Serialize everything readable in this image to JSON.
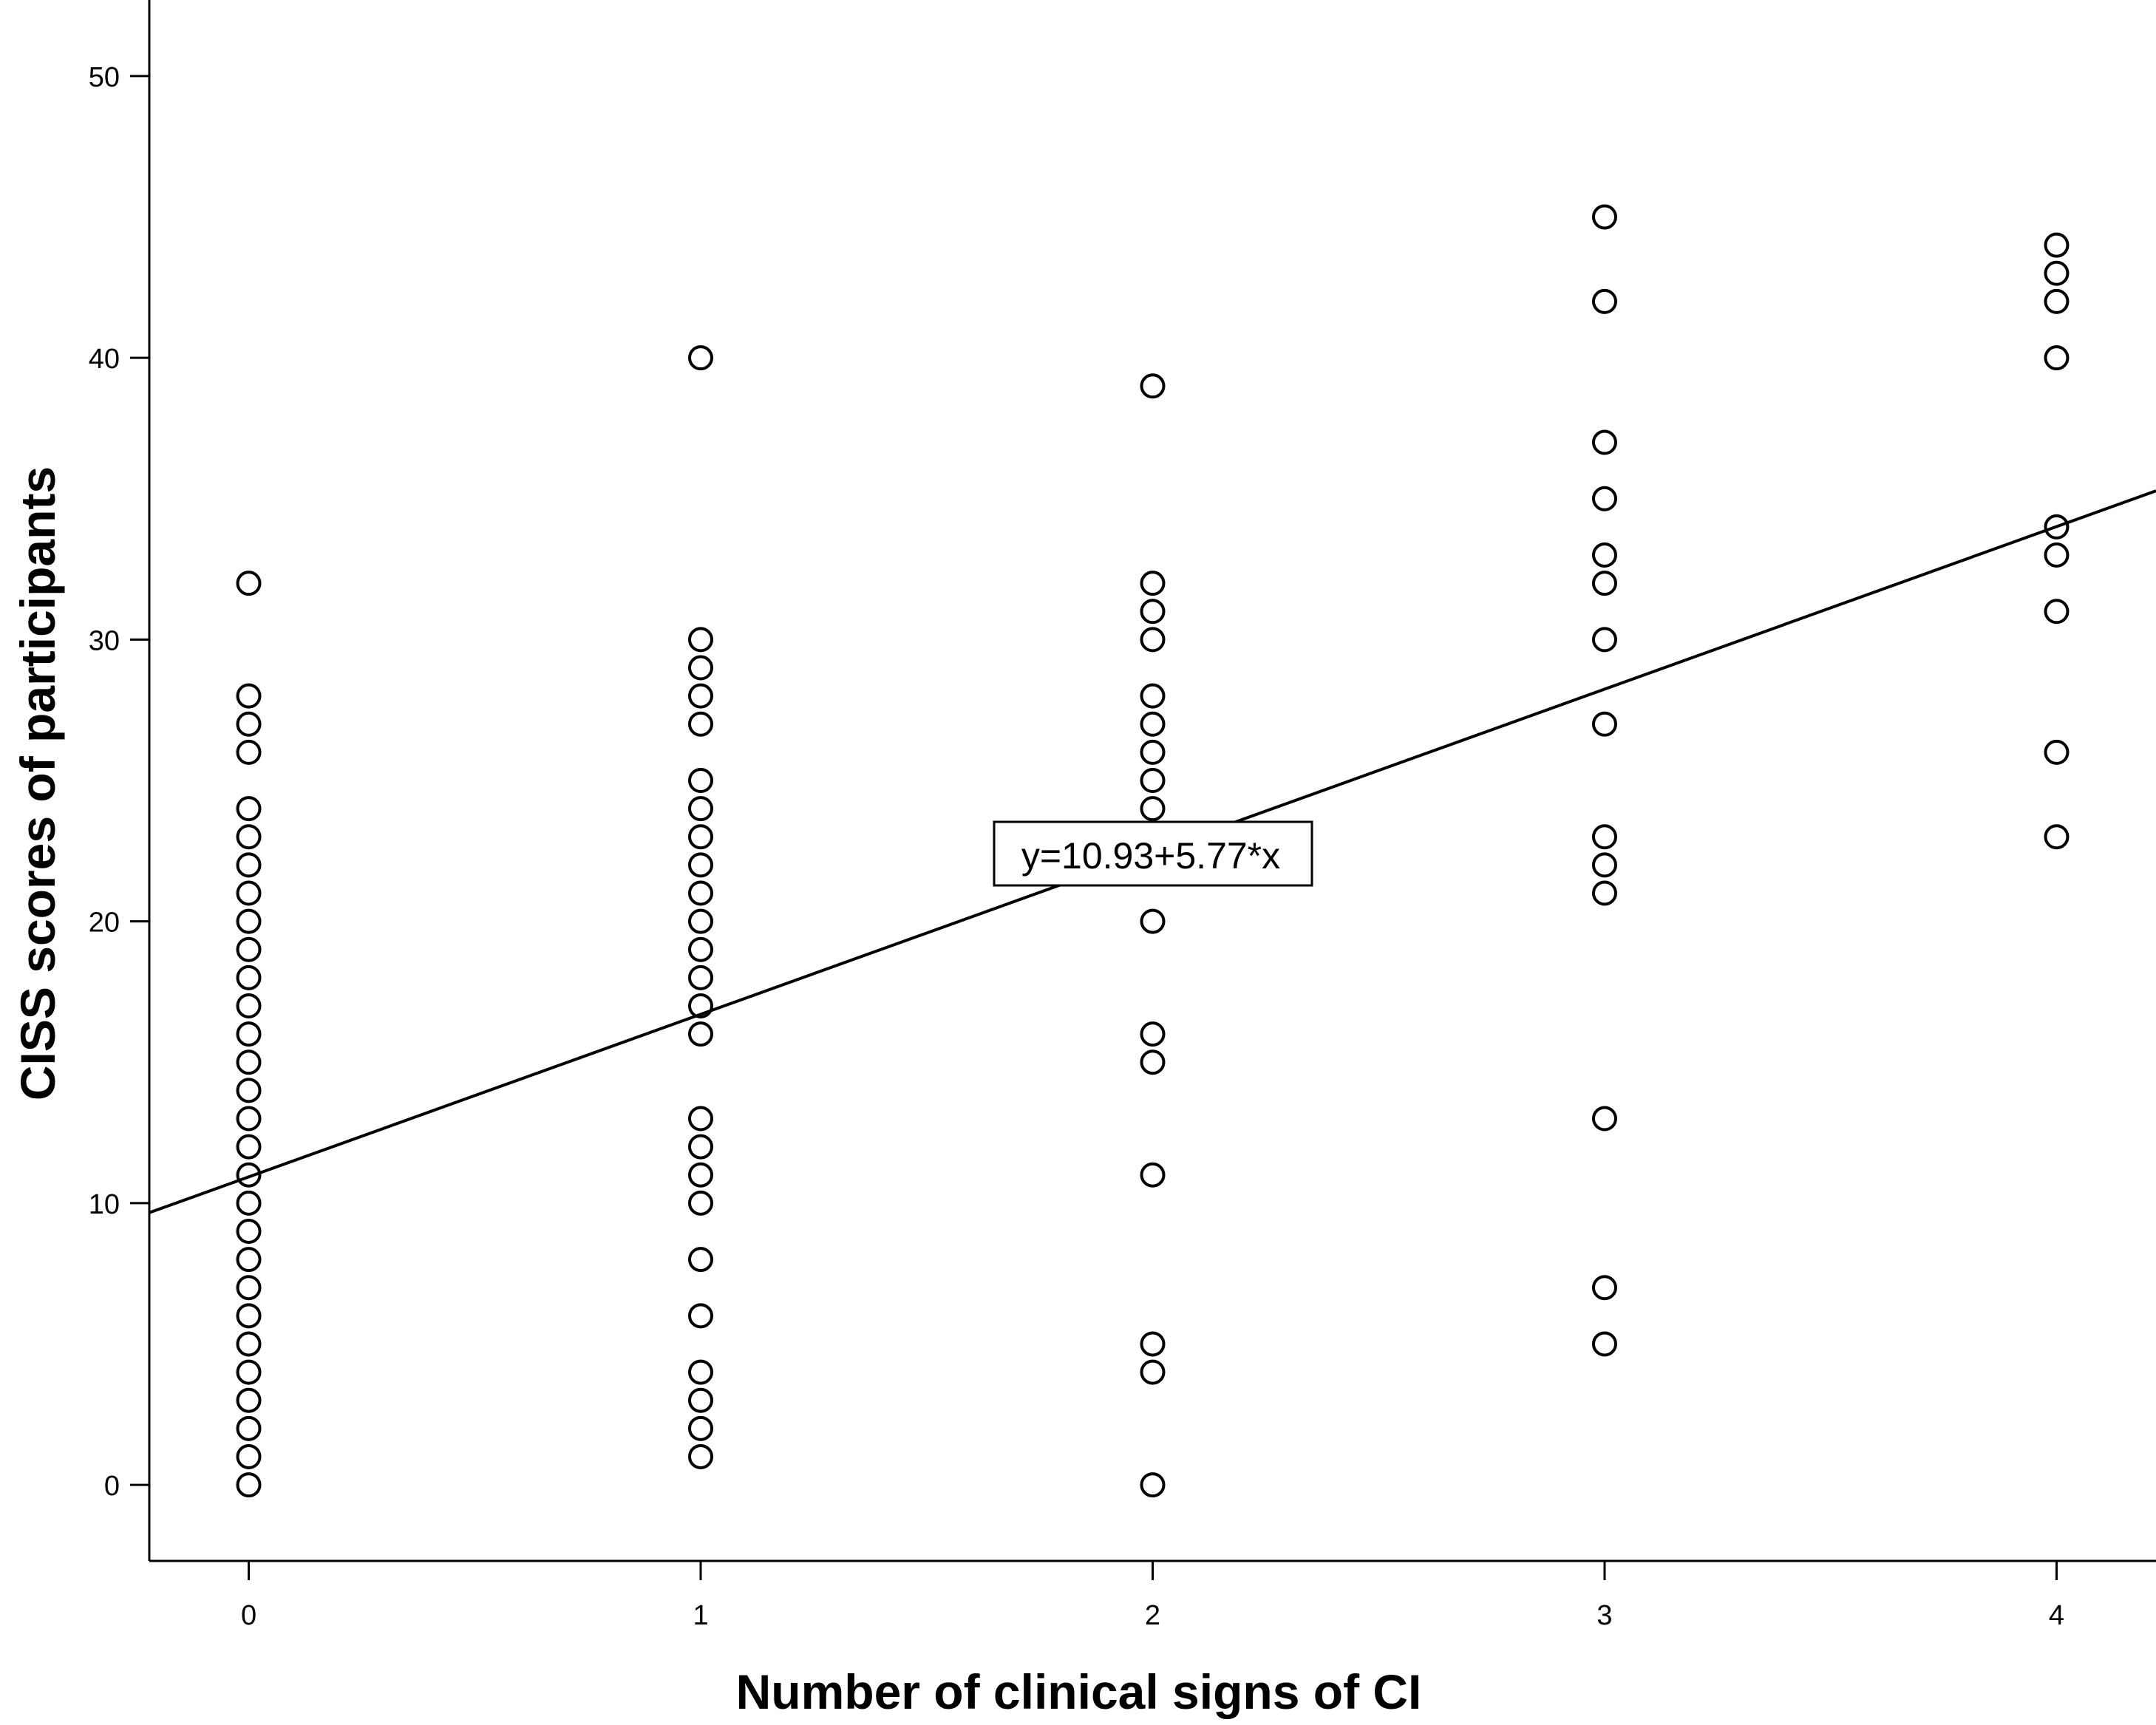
{
  "chart_data": {
    "type": "scatter",
    "title": "",
    "xlabel": "Number of clinical signs of CI",
    "ylabel": "CISS scores of participants",
    "xlim": [
      -0.22,
      4.22
    ],
    "ylim": [
      -2.7,
      52.7
    ],
    "x_ticks": [
      0,
      1,
      2,
      3,
      4
    ],
    "y_ticks": [
      0,
      10,
      20,
      30,
      40,
      50
    ],
    "grid": false,
    "legend": "none",
    "points": {
      "0": [
        0,
        1,
        2,
        3,
        4,
        5,
        6,
        7,
        8,
        9,
        10,
        11,
        12,
        13,
        14,
        15,
        16,
        17,
        18,
        19,
        20,
        21,
        22,
        23,
        24,
        26,
        27,
        28,
        32
      ],
      "1": [
        1,
        2,
        3,
        4,
        6,
        8,
        10,
        11,
        12,
        13,
        16,
        17,
        18,
        19,
        20,
        21,
        22,
        23,
        24,
        25,
        27,
        28,
        29,
        30,
        40
      ],
      "2": [
        0,
        4,
        5,
        11,
        15,
        16,
        20,
        24,
        25,
        26,
        27,
        28,
        30,
        31,
        32,
        39
      ],
      "3": [
        5,
        7,
        13,
        21,
        22,
        23,
        27,
        30,
        32,
        33,
        35,
        37,
        42,
        45
      ],
      "4": [
        23,
        26,
        31,
        33,
        34,
        40,
        42,
        43,
        44
      ]
    },
    "fit_line": {
      "intercept": 10.93,
      "slope": 5.77,
      "label": "y=10.93+5.77*x"
    },
    "colors": {
      "marker": "#000000",
      "line": "#000000",
      "background": "#ffffff"
    }
  }
}
